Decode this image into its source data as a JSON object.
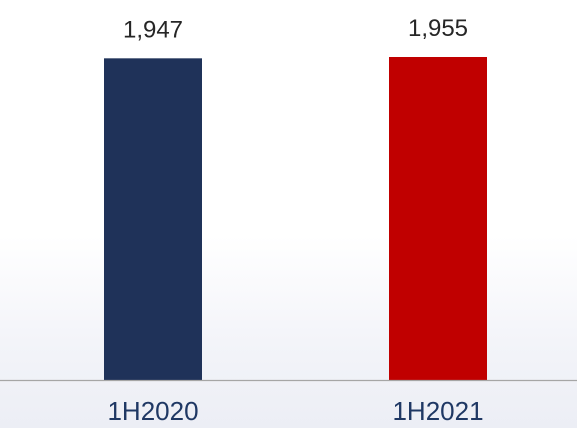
{
  "chart_data": {
    "type": "bar",
    "categories": [
      "1H2020",
      "1H2021"
    ],
    "values": [
      1947,
      1955
    ],
    "value_labels": [
      "1,947",
      "1,955"
    ],
    "bar_colors": [
      "#1f3259",
      "#c00000"
    ],
    "axis_color": "#a6a6a6",
    "category_label_color": "#1f3864",
    "title": "",
    "xlabel": "",
    "ylabel": "",
    "ylim": [
      0,
      1955
    ],
    "grid": false,
    "legend": "none"
  }
}
